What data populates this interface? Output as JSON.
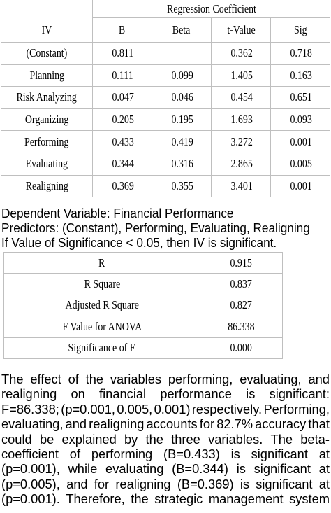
{
  "regression_table": {
    "group_header": "Regression Coefficient",
    "columns": [
      "IV",
      "B",
      "Beta",
      "t-Value",
      "Sig"
    ],
    "rows": [
      [
        "(Constant)",
        "0.811",
        "",
        "0.362",
        "0.718"
      ],
      [
        "Planning",
        "0.111",
        "0.099",
        "1.405",
        "0.163"
      ],
      [
        "Risk Analyzing",
        "0.047",
        "0.046",
        "0.454",
        "0.651"
      ],
      [
        "Organizing",
        "0.205",
        "0.195",
        "1.693",
        "0.093"
      ],
      [
        "Performing",
        "0.433",
        "0.419",
        "3.272",
        "0.001"
      ],
      [
        "Evaluating",
        "0.344",
        "0.316",
        "2.865",
        "0.005"
      ],
      [
        "Realigning",
        "0.369",
        "0.355",
        "3.401",
        "0.001"
      ]
    ]
  },
  "notes": [
    "Dependent Variable: Financial Performance",
    "Predictors: (Constant), Performing, Evaluating, Realigning",
    "If Value of Significance < 0.05, then IV is significant."
  ],
  "summary_table": [
    [
      "R",
      "0.915"
    ],
    [
      "R Square",
      "0.837"
    ],
    [
      "Adjusted R Square",
      "0.827"
    ],
    [
      "F Value for ANOVA",
      "86.338"
    ],
    [
      "Significance of  F",
      "0.000"
    ]
  ],
  "paragraph_lines": [
    "The effect of the variables performing, evaluating, and",
    "realigning on financial performance is significant:",
    "F=86.338; (p=0.001, 0.005, 0.001) respectively. Performing,",
    "evaluating, and realigning accounts for 82.7% accuracy that",
    "could be explained by the three variables. The beta-",
    "coefficient of performing (B=0.433) is significant at",
    "(p=0.001), while evaluating (B=0.344) is significant at",
    "(p=0.005), and for realigning (B=0.369) is significant at",
    "(p=0.001). Therefore, the strategic management system"
  ]
}
